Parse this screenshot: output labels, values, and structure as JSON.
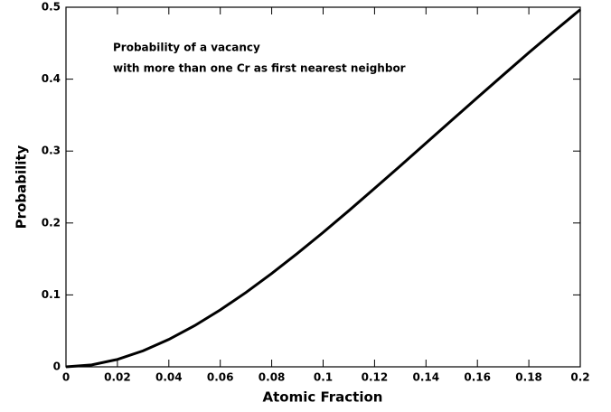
{
  "chart_data": {
    "type": "line",
    "annotation": [
      "Probability of a vacancy",
      "with more than one Cr as first nearest neighbor"
    ],
    "x_label": "Atomic Fraction",
    "y_label": "Probability",
    "x": [
      0,
      0.01,
      0.02,
      0.03,
      0.04,
      0.05,
      0.06,
      0.07,
      0.08,
      0.09,
      0.1,
      0.11,
      0.12,
      0.13,
      0.14,
      0.15,
      0.16,
      0.17,
      0.18,
      0.19,
      0.2
    ],
    "series": [
      {
        "color": "#000000",
        "values": [
          0,
          0.0027,
          0.0103,
          0.0223,
          0.0381,
          0.0572,
          0.0791,
          0.1034,
          0.1298,
          0.1577,
          0.1869,
          0.2171,
          0.2481,
          0.2794,
          0.3111,
          0.3428,
          0.3744,
          0.4057,
          0.4369,
          0.467,
          0.4967
        ]
      }
    ],
    "xlim": [
      0,
      0.2
    ],
    "ylim": [
      0,
      0.5
    ],
    "xticks": [
      0,
      0.02,
      0.04,
      0.06,
      0.08,
      0.1,
      0.12,
      0.14,
      0.16,
      0.18,
      0.2
    ],
    "yticks": [
      0,
      0.1,
      0.2,
      0.3,
      0.4,
      0.5
    ]
  }
}
